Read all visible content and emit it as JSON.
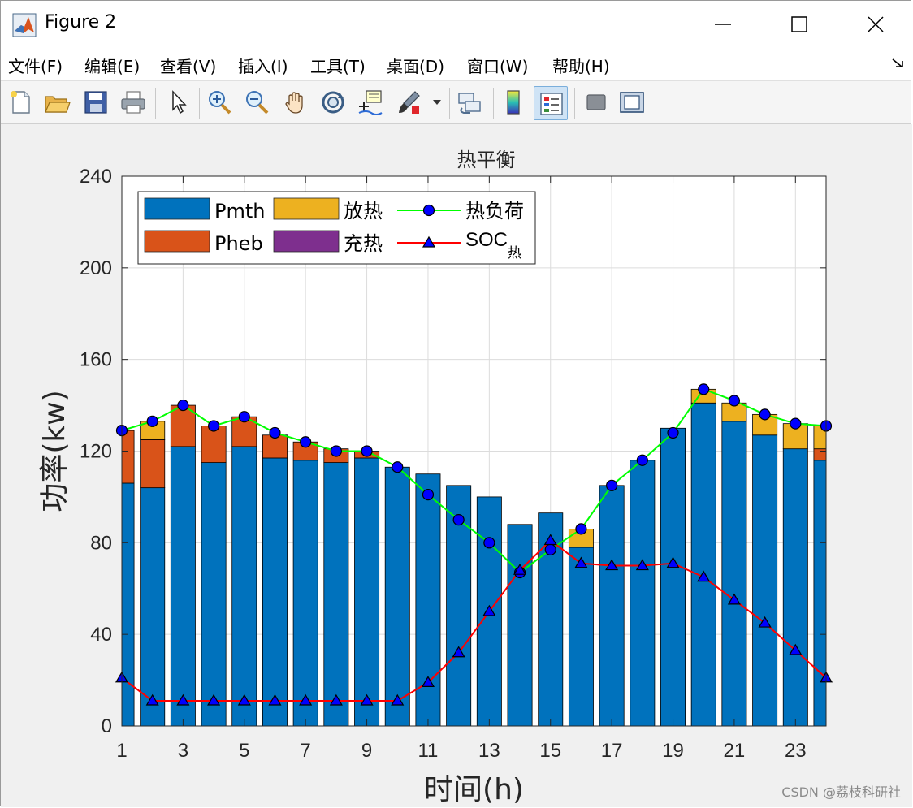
{
  "window": {
    "title": "Figure 2"
  },
  "menu": [
    "文件(F)",
    "编辑(E)",
    "查看(V)",
    "插入(I)",
    "工具(T)",
    "桌面(D)",
    "窗口(W)",
    "帮助(H)"
  ],
  "toolbar": {
    "icons": [
      "new-figure-icon",
      "open-file-icon",
      "save-icon",
      "print-icon",
      "select-arrow-icon",
      "zoom-in-icon",
      "zoom-out-icon",
      "pan-hand-icon",
      "rotate-3d-icon",
      "data-cursor-icon",
      "brush-icon",
      "link-plot-icon",
      "colorbar-icon",
      "legend-icon",
      "hide-plot-tools-icon",
      "show-plot-tools-icon"
    ]
  },
  "watermark": "CSDN @荔枝科研社",
  "colors": {
    "pmth": "#0072BD",
    "pheb": "#D95319",
    "discharge": "#EDB120",
    "charge": "#7E2F8E",
    "heat_load_line": "#00FF00",
    "soc_line": "#FF0000",
    "marker_fill": "#0000FF"
  },
  "chart_data": {
    "type": "bar",
    "title": "热平衡",
    "xlabel": "时间(h)",
    "ylabel": "功率(kw)",
    "ylim": [
      0,
      240
    ],
    "xlim": [
      1,
      24
    ],
    "yticks": [
      0,
      40,
      80,
      120,
      160,
      200,
      240
    ],
    "xticks": [
      1,
      3,
      5,
      7,
      9,
      11,
      13,
      15,
      17,
      19,
      21,
      23
    ],
    "grid": true,
    "legend_position": "top-left",
    "categories": [
      1,
      2,
      3,
      4,
      5,
      6,
      7,
      8,
      9,
      10,
      11,
      12,
      13,
      14,
      15,
      16,
      17,
      18,
      19,
      20,
      21,
      22,
      23,
      24
    ],
    "series": [
      {
        "name": "Pmth",
        "kind": "bar",
        "values": [
          106,
          104,
          122,
          115,
          122,
          117,
          116,
          115,
          117,
          113,
          110,
          105,
          100,
          88,
          93,
          78,
          105,
          116,
          130,
          141,
          133,
          127,
          121,
          116
        ]
      },
      {
        "name": "Pheb",
        "kind": "bar",
        "values": [
          23,
          21,
          18,
          16,
          13,
          10,
          8,
          6,
          3,
          0,
          0,
          0,
          0,
          0,
          0,
          0,
          0,
          0,
          0,
          0,
          0,
          0,
          0,
          5
        ]
      },
      {
        "name": "放热",
        "kind": "bar",
        "values": [
          0,
          8,
          0,
          0,
          0,
          0,
          0,
          0,
          0,
          0,
          0,
          0,
          0,
          0,
          0,
          8,
          0,
          0,
          0,
          6,
          8,
          9,
          11,
          10
        ]
      },
      {
        "name": "充热",
        "kind": "bar",
        "values": [
          0,
          0,
          0,
          0,
          0,
          0,
          0,
          0,
          0,
          0,
          0,
          0,
          0,
          0,
          0,
          0,
          0,
          0,
          0,
          0,
          0,
          0,
          0,
          0
        ]
      },
      {
        "name": "热负荷",
        "kind": "line",
        "values": [
          129,
          133,
          140,
          131,
          135,
          128,
          124,
          120,
          120,
          113,
          101,
          90,
          80,
          67,
          77,
          86,
          105,
          116,
          128,
          147,
          142,
          136,
          132,
          131
        ]
      },
      {
        "name": "SOC",
        "name_sub": "热",
        "kind": "line",
        "values": [
          21,
          11,
          11,
          11,
          11,
          11,
          11,
          11,
          11,
          11,
          19,
          32,
          50,
          68,
          81,
          71,
          70,
          70,
          71,
          65,
          55,
          45,
          33,
          21
        ]
      }
    ]
  }
}
